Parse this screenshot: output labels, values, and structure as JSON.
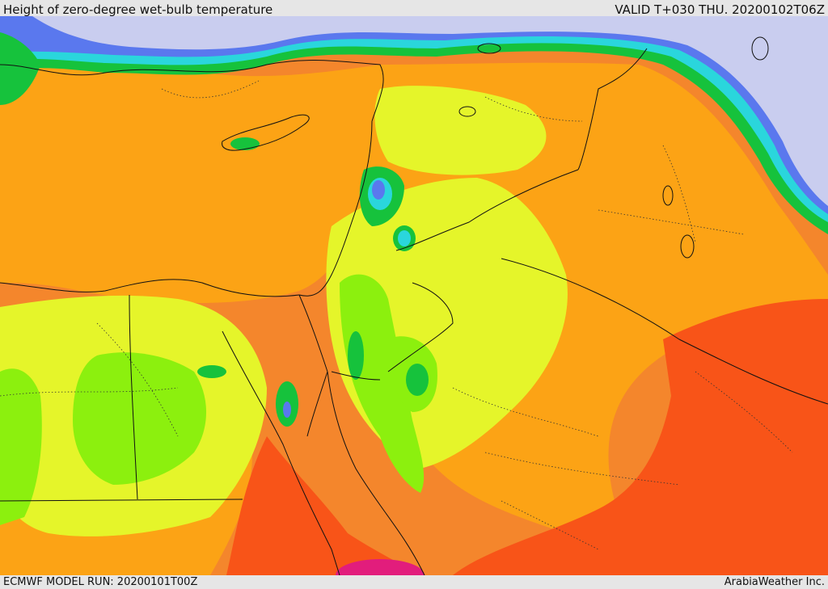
{
  "header": {
    "title": "Height of zero-degree wet-bulb temperature",
    "valid": "VALID T+030 THU. 20200102T06Z"
  },
  "footer": {
    "model_run": "ECMWF MODEL RUN: 20200101T00Z",
    "credit": "ArabiaWeather Inc."
  },
  "colors": {
    "light_lavender": "#c9cdef",
    "blue": "#5a78ee",
    "cyan": "#2ad6dc",
    "green": "#16c23c",
    "lime": "#8cf00e",
    "yellow_green": "#e5f52a",
    "orange_yellow": "#fca315",
    "orange": "#f4862c",
    "red_orange": "#f85418",
    "magenta": "#e21d7c"
  }
}
